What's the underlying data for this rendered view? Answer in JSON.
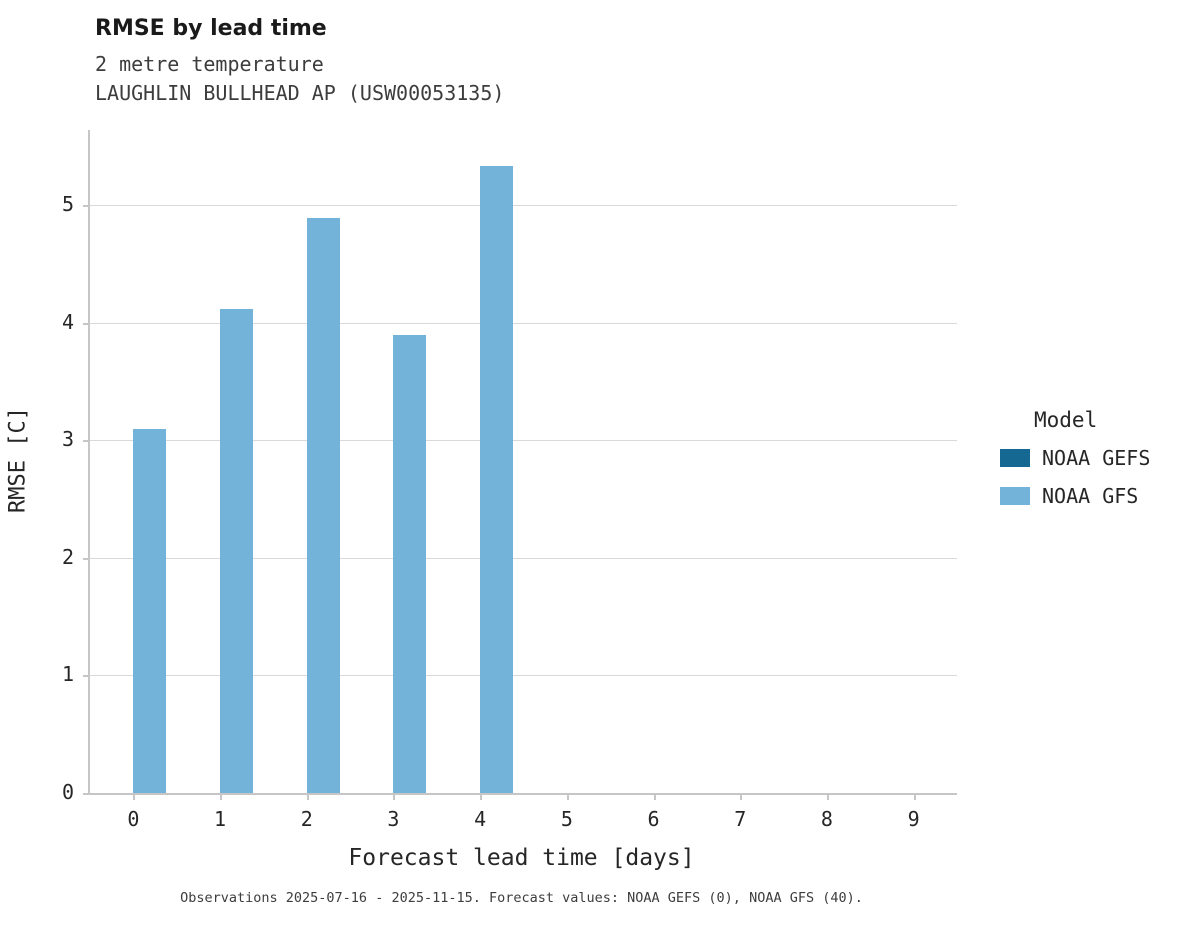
{
  "title": "RMSE by lead time",
  "subtitle_line1": "2 metre temperature",
  "subtitle_line2": "LAUGHLIN BULLHEAD AP (USW00053135)",
  "footer_note": "Observations 2025-07-16 - 2025-11-15. Forecast values: NOAA GEFS (0), NOAA GFS (40).",
  "colors": {
    "noaa_gefs": "#156892",
    "noaa_gfs": "#74b3d9",
    "axis": "#c6c6c6",
    "grid": "#d9d9d9"
  },
  "legend": {
    "title": "Model",
    "entries": [
      {
        "label": "NOAA GEFS",
        "color": "#156892"
      },
      {
        "label": "NOAA GFS",
        "color": "#74b3d9"
      }
    ]
  },
  "chart_data": {
    "type": "bar",
    "title": "RMSE by lead time",
    "subtitle": "2 metre temperature — LAUGHLIN BULLHEAD AP (USW00053135)",
    "xlabel": "Forecast lead time [days]",
    "ylabel": "RMSE [C]",
    "categories": [
      0,
      1,
      2,
      3,
      4,
      5,
      6,
      7,
      8,
      9
    ],
    "series": [
      {
        "name": "NOAA GEFS",
        "color": "#156892",
        "values": [
          null,
          null,
          null,
          null,
          null,
          null,
          null,
          null,
          null,
          null
        ]
      },
      {
        "name": "NOAA GFS",
        "color": "#74b3d9",
        "values": [
          3.1,
          4.12,
          4.89,
          3.9,
          5.33,
          null,
          null,
          null,
          null,
          null
        ]
      }
    ],
    "ylim": [
      0,
      5.64
    ],
    "yticks": [
      0,
      1,
      2,
      3,
      4,
      5
    ],
    "grid": true,
    "legend_position": "right",
    "legend_title": "Model"
  }
}
